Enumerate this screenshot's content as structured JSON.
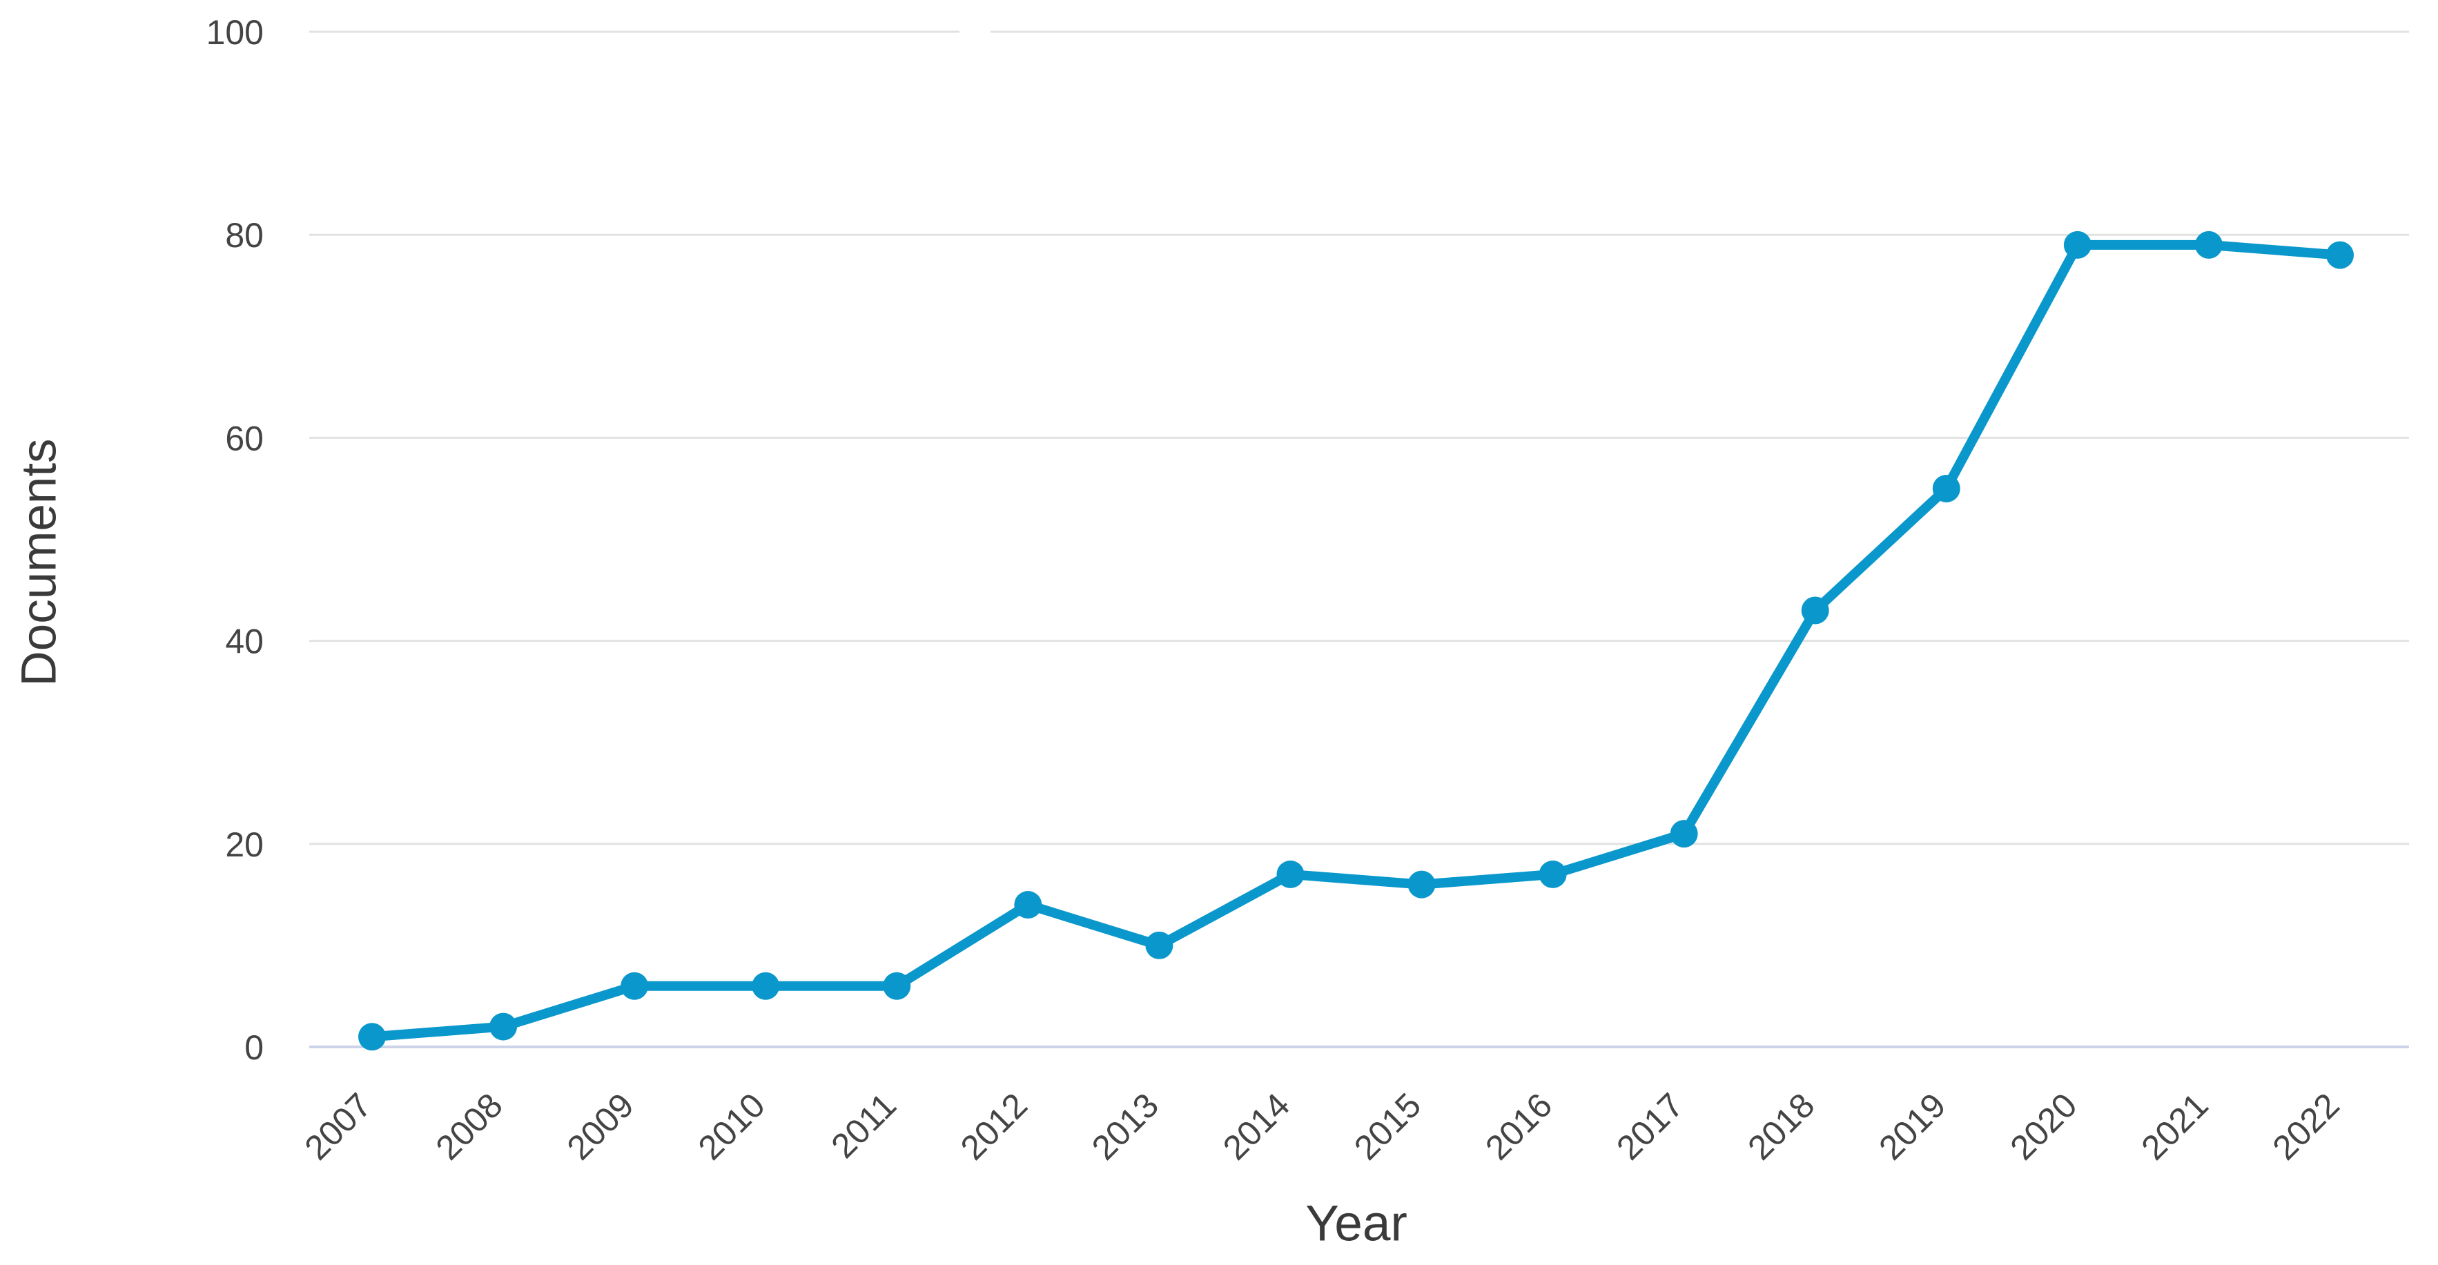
{
  "chart_data": {
    "type": "line",
    "title": "",
    "xlabel": "Year",
    "ylabel": "Documents",
    "categories": [
      "2007",
      "2008",
      "2009",
      "2010",
      "2011",
      "2012",
      "2013",
      "2014",
      "2015",
      "2016",
      "2017",
      "2018",
      "2019",
      "2020",
      "2021",
      "2022"
    ],
    "series": [
      {
        "name": "Documents",
        "values": [
          1,
          2,
          6,
          6,
          6,
          14,
          10,
          17,
          16,
          17,
          21,
          43,
          55,
          79,
          79,
          78
        ],
        "color": "#0a98cc"
      }
    ],
    "ylim": [
      0,
      100
    ],
    "yticks": [
      0,
      20,
      40,
      60,
      80,
      100
    ],
    "grid": "horizontal",
    "legend_position": "none",
    "marker": "circle",
    "x_tick_rotation_deg": -45
  },
  "colors": {
    "background": "#ffffff",
    "gridline": "#e2e2e2",
    "baseline": "#ccd3e9",
    "tick_label": "#444444",
    "axis_title": "#3a3a3a",
    "series": "#0a98cc"
  }
}
